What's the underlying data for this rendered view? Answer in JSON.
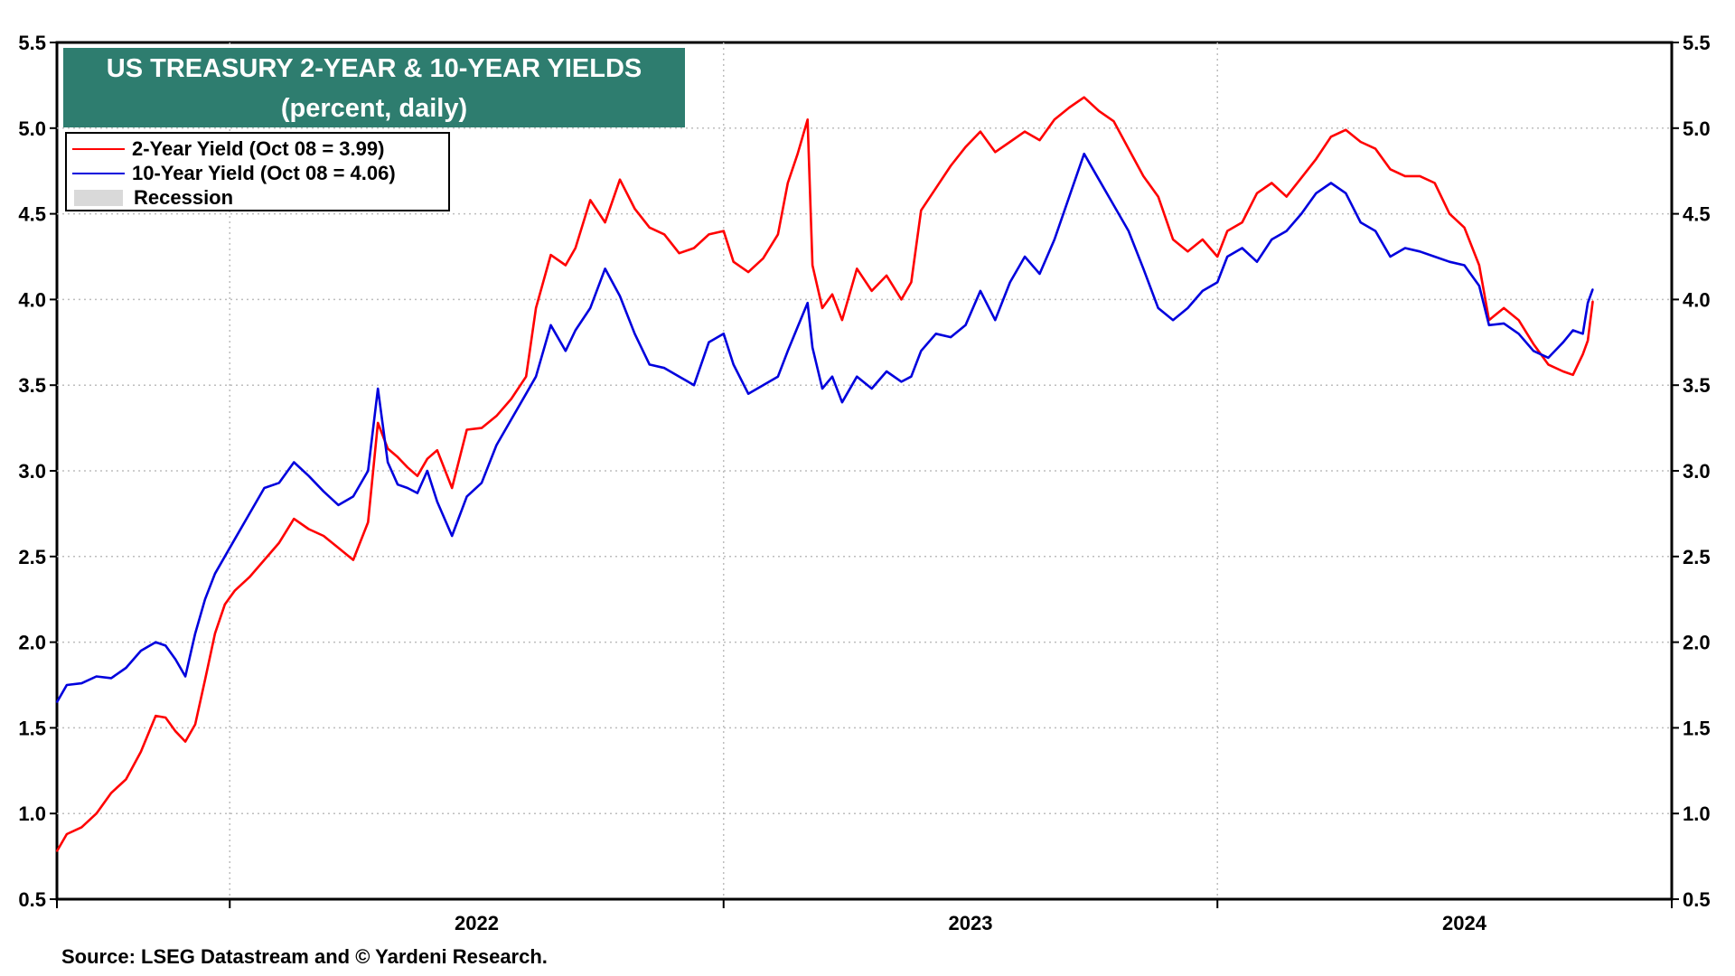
{
  "chart_data": {
    "type": "line",
    "title": "US TREASURY 2-YEAR & 10-YEAR YIELDS",
    "subtitle": "(percent, daily)",
    "ylim": [
      0.5,
      5.5
    ],
    "y_ticks": [
      "0.5",
      "1.0",
      "1.5",
      "2.0",
      "2.5",
      "3.0",
      "3.5",
      "4.0",
      "4.5",
      "5.0",
      "5.5"
    ],
    "x_range": [
      2021.65,
      2024.92
    ],
    "year_labels": [
      {
        "label": "2022",
        "x": 2022.5
      },
      {
        "label": "2023",
        "x": 2023.5
      },
      {
        "label": "2024",
        "x": 2024.5
      }
    ],
    "year_boundaries": [
      2022.0,
      2023.0,
      2024.0
    ],
    "grid": true,
    "legend_position": "top-left",
    "series": [
      {
        "name": "2-Year Yield",
        "legend": "2-Year Yield (Oct 08 = 3.99)",
        "color": "#ff0000",
        "points": [
          [
            2021.65,
            0.78
          ],
          [
            2021.67,
            0.88
          ],
          [
            2021.7,
            0.92
          ],
          [
            2021.73,
            1.0
          ],
          [
            2021.76,
            1.12
          ],
          [
            2021.79,
            1.2
          ],
          [
            2021.82,
            1.36
          ],
          [
            2021.85,
            1.57
          ],
          [
            2021.87,
            1.56
          ],
          [
            2021.89,
            1.48
          ],
          [
            2021.91,
            1.42
          ],
          [
            2021.93,
            1.52
          ],
          [
            2021.95,
            1.78
          ],
          [
            2021.97,
            2.05
          ],
          [
            2021.99,
            2.22
          ],
          [
            2022.01,
            2.3
          ],
          [
            2022.04,
            2.38
          ],
          [
            2022.07,
            2.48
          ],
          [
            2022.1,
            2.58
          ],
          [
            2022.13,
            2.72
          ],
          [
            2022.16,
            2.66
          ],
          [
            2022.19,
            2.62
          ],
          [
            2022.22,
            2.55
          ],
          [
            2022.25,
            2.48
          ],
          [
            2022.28,
            2.7
          ],
          [
            2022.3,
            3.28
          ],
          [
            2022.32,
            3.13
          ],
          [
            2022.34,
            3.08
          ],
          [
            2022.36,
            3.02
          ],
          [
            2022.38,
            2.97
          ],
          [
            2022.4,
            3.07
          ],
          [
            2022.42,
            3.12
          ],
          [
            2022.45,
            2.9
          ],
          [
            2022.48,
            3.24
          ],
          [
            2022.51,
            3.25
          ],
          [
            2022.54,
            3.32
          ],
          [
            2022.57,
            3.42
          ],
          [
            2022.6,
            3.55
          ],
          [
            2022.62,
            3.95
          ],
          [
            2022.65,
            4.26
          ],
          [
            2022.68,
            4.2
          ],
          [
            2022.7,
            4.3
          ],
          [
            2022.73,
            4.58
          ],
          [
            2022.76,
            4.45
          ],
          [
            2022.79,
            4.7
          ],
          [
            2022.82,
            4.53
          ],
          [
            2022.85,
            4.42
          ],
          [
            2022.88,
            4.38
          ],
          [
            2022.91,
            4.27
          ],
          [
            2022.94,
            4.3
          ],
          [
            2022.97,
            4.38
          ],
          [
            2023.0,
            4.4
          ],
          [
            2023.02,
            4.22
          ],
          [
            2023.05,
            4.16
          ],
          [
            2023.08,
            4.24
          ],
          [
            2023.11,
            4.38
          ],
          [
            2023.13,
            4.68
          ],
          [
            2023.15,
            4.85
          ],
          [
            2023.17,
            5.05
          ],
          [
            2023.18,
            4.2
          ],
          [
            2023.2,
            3.95
          ],
          [
            2023.22,
            4.03
          ],
          [
            2023.24,
            3.88
          ],
          [
            2023.27,
            4.18
          ],
          [
            2023.3,
            4.05
          ],
          [
            2023.33,
            4.14
          ],
          [
            2023.36,
            4.0
          ],
          [
            2023.38,
            4.1
          ],
          [
            2023.4,
            4.52
          ],
          [
            2023.43,
            4.65
          ],
          [
            2023.46,
            4.78
          ],
          [
            2023.49,
            4.89
          ],
          [
            2023.52,
            4.98
          ],
          [
            2023.55,
            4.86
          ],
          [
            2023.58,
            4.92
          ],
          [
            2023.61,
            4.98
          ],
          [
            2023.64,
            4.93
          ],
          [
            2023.67,
            5.05
          ],
          [
            2023.7,
            5.12
          ],
          [
            2023.73,
            5.18
          ],
          [
            2023.76,
            5.1
          ],
          [
            2023.79,
            5.04
          ],
          [
            2023.82,
            4.88
          ],
          [
            2023.85,
            4.72
          ],
          [
            2023.88,
            4.6
          ],
          [
            2023.91,
            4.35
          ],
          [
            2023.94,
            4.28
          ],
          [
            2023.97,
            4.35
          ],
          [
            2024.0,
            4.25
          ],
          [
            2024.02,
            4.4
          ],
          [
            2024.05,
            4.45
          ],
          [
            2024.08,
            4.62
          ],
          [
            2024.11,
            4.68
          ],
          [
            2024.14,
            4.6
          ],
          [
            2024.17,
            4.71
          ],
          [
            2024.2,
            4.82
          ],
          [
            2024.23,
            4.95
          ],
          [
            2024.26,
            4.99
          ],
          [
            2024.29,
            4.92
          ],
          [
            2024.32,
            4.88
          ],
          [
            2024.35,
            4.76
          ],
          [
            2024.38,
            4.72
          ],
          [
            2024.41,
            4.72
          ],
          [
            2024.44,
            4.68
          ],
          [
            2024.47,
            4.5
          ],
          [
            2024.5,
            4.42
          ],
          [
            2024.53,
            4.2
          ],
          [
            2024.55,
            3.88
          ],
          [
            2024.58,
            3.95
          ],
          [
            2024.61,
            3.88
          ],
          [
            2024.64,
            3.74
          ],
          [
            2024.67,
            3.62
          ],
          [
            2024.7,
            3.58
          ],
          [
            2024.72,
            3.56
          ],
          [
            2024.74,
            3.68
          ],
          [
            2024.75,
            3.76
          ],
          [
            2024.76,
            3.99
          ]
        ]
      },
      {
        "name": "10-Year Yield",
        "legend": "10-Year Yield (Oct 08 = 4.06)",
        "color": "#0000dd",
        "points": [
          [
            2021.65,
            1.65
          ],
          [
            2021.67,
            1.75
          ],
          [
            2021.7,
            1.76
          ],
          [
            2021.73,
            1.8
          ],
          [
            2021.76,
            1.79
          ],
          [
            2021.79,
            1.85
          ],
          [
            2021.82,
            1.95
          ],
          [
            2021.85,
            2.0
          ],
          [
            2021.87,
            1.98
          ],
          [
            2021.89,
            1.9
          ],
          [
            2021.91,
            1.8
          ],
          [
            2021.93,
            2.05
          ],
          [
            2021.95,
            2.25
          ],
          [
            2021.97,
            2.4
          ],
          [
            2021.99,
            2.5
          ],
          [
            2022.01,
            2.6
          ],
          [
            2022.04,
            2.75
          ],
          [
            2022.07,
            2.9
          ],
          [
            2022.1,
            2.93
          ],
          [
            2022.13,
            3.05
          ],
          [
            2022.16,
            2.97
          ],
          [
            2022.19,
            2.88
          ],
          [
            2022.22,
            2.8
          ],
          [
            2022.25,
            2.85
          ],
          [
            2022.28,
            3.0
          ],
          [
            2022.3,
            3.48
          ],
          [
            2022.32,
            3.05
          ],
          [
            2022.34,
            2.92
          ],
          [
            2022.36,
            2.9
          ],
          [
            2022.38,
            2.87
          ],
          [
            2022.4,
            3.0
          ],
          [
            2022.42,
            2.82
          ],
          [
            2022.45,
            2.62
          ],
          [
            2022.48,
            2.85
          ],
          [
            2022.51,
            2.93
          ],
          [
            2022.54,
            3.15
          ],
          [
            2022.57,
            3.3
          ],
          [
            2022.6,
            3.45
          ],
          [
            2022.62,
            3.55
          ],
          [
            2022.65,
            3.85
          ],
          [
            2022.68,
            3.7
          ],
          [
            2022.7,
            3.82
          ],
          [
            2022.73,
            3.95
          ],
          [
            2022.76,
            4.18
          ],
          [
            2022.79,
            4.02
          ],
          [
            2022.82,
            3.8
          ],
          [
            2022.85,
            3.62
          ],
          [
            2022.88,
            3.6
          ],
          [
            2022.91,
            3.55
          ],
          [
            2022.94,
            3.5
          ],
          [
            2022.97,
            3.75
          ],
          [
            2023.0,
            3.8
          ],
          [
            2023.02,
            3.62
          ],
          [
            2023.05,
            3.45
          ],
          [
            2023.08,
            3.5
          ],
          [
            2023.11,
            3.55
          ],
          [
            2023.13,
            3.7
          ],
          [
            2023.15,
            3.84
          ],
          [
            2023.17,
            3.98
          ],
          [
            2023.18,
            3.72
          ],
          [
            2023.2,
            3.48
          ],
          [
            2023.22,
            3.55
          ],
          [
            2023.24,
            3.4
          ],
          [
            2023.27,
            3.55
          ],
          [
            2023.3,
            3.48
          ],
          [
            2023.33,
            3.58
          ],
          [
            2023.36,
            3.52
          ],
          [
            2023.38,
            3.55
          ],
          [
            2023.4,
            3.7
          ],
          [
            2023.43,
            3.8
          ],
          [
            2023.46,
            3.78
          ],
          [
            2023.49,
            3.85
          ],
          [
            2023.52,
            4.05
          ],
          [
            2023.55,
            3.88
          ],
          [
            2023.58,
            4.1
          ],
          [
            2023.61,
            4.25
          ],
          [
            2023.64,
            4.15
          ],
          [
            2023.67,
            4.35
          ],
          [
            2023.7,
            4.6
          ],
          [
            2023.73,
            4.85
          ],
          [
            2023.76,
            4.7
          ],
          [
            2023.79,
            4.55
          ],
          [
            2023.82,
            4.4
          ],
          [
            2023.85,
            4.18
          ],
          [
            2023.88,
            3.95
          ],
          [
            2023.91,
            3.88
          ],
          [
            2023.94,
            3.95
          ],
          [
            2023.97,
            4.05
          ],
          [
            2024.0,
            4.1
          ],
          [
            2024.02,
            4.25
          ],
          [
            2024.05,
            4.3
          ],
          [
            2024.08,
            4.22
          ],
          [
            2024.11,
            4.35
          ],
          [
            2024.14,
            4.4
          ],
          [
            2024.17,
            4.5
          ],
          [
            2024.2,
            4.62
          ],
          [
            2024.23,
            4.68
          ],
          [
            2024.26,
            4.62
          ],
          [
            2024.29,
            4.45
          ],
          [
            2024.32,
            4.4
          ],
          [
            2024.35,
            4.25
          ],
          [
            2024.38,
            4.3
          ],
          [
            2024.41,
            4.28
          ],
          [
            2024.44,
            4.25
          ],
          [
            2024.47,
            4.22
          ],
          [
            2024.5,
            4.2
          ],
          [
            2024.53,
            4.08
          ],
          [
            2024.55,
            3.85
          ],
          [
            2024.58,
            3.86
          ],
          [
            2024.61,
            3.8
          ],
          [
            2024.64,
            3.7
          ],
          [
            2024.67,
            3.66
          ],
          [
            2024.7,
            3.75
          ],
          [
            2024.72,
            3.82
          ],
          [
            2024.74,
            3.8
          ],
          [
            2024.75,
            3.98
          ],
          [
            2024.76,
            4.06
          ]
        ]
      }
    ]
  },
  "legend": {
    "two_year": "2-Year Yield (Oct 08 = 3.99)",
    "ten_year": "10-Year Yield (Oct 08 = 4.06)",
    "recession": "Recession"
  },
  "source": "Source: LSEG Datastream and © Yardeni Research."
}
